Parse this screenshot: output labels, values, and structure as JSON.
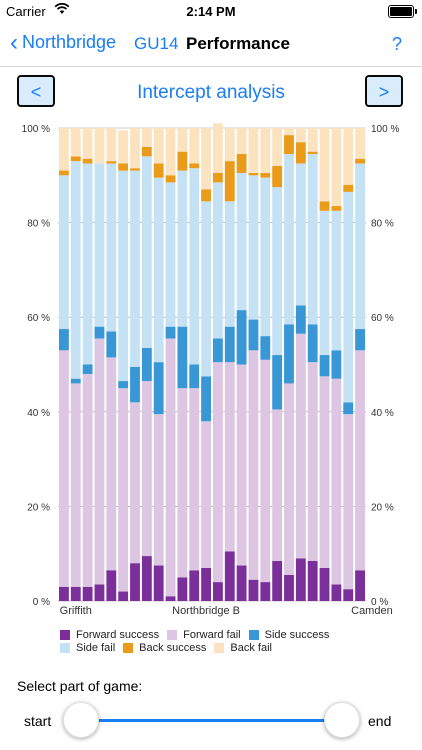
{
  "status_bar": {
    "carrier": "Carrier",
    "time": "2:14 PM"
  },
  "nav": {
    "back_label": "Northbridge",
    "team": "GU14",
    "title": "Performance",
    "help": "?"
  },
  "controls": {
    "prev_label": "<",
    "next_label": ">",
    "analysis_title": "Intercept analysis"
  },
  "chart_data": {
    "type": "bar",
    "stacked": true,
    "ylim": [
      0,
      100
    ],
    "yticks": [
      "0 %",
      "20 %",
      "40 %",
      "60 %",
      "80 %",
      "100 %"
    ],
    "x_tick_labels": [
      {
        "index": 1,
        "label": "Griffith"
      },
      {
        "index": 12,
        "label": "Northbridge B"
      },
      {
        "index": 26,
        "label": "Camden"
      }
    ],
    "colors": {
      "forward_success": "#7b2f9a",
      "forward_fail": "#dcc6e1",
      "side_success": "#3a97d6",
      "side_fail": "#c5e2f4",
      "back_success": "#eb9b1a",
      "back_fail": "#fbe3c0"
    },
    "series": [
      {
        "key": "forward_success",
        "name": "Forward success",
        "values": [
          3,
          3,
          3,
          3.5,
          6.5,
          2,
          8,
          9.5,
          7.5,
          1,
          5,
          6.5,
          7,
          4,
          10.5,
          7.5,
          4.5,
          4,
          8.5,
          5.5,
          9,
          8.5,
          7,
          3.5,
          2.5,
          6.5
        ]
      },
      {
        "key": "forward_fail",
        "name": "Forward fail",
        "values": [
          50,
          43,
          45,
          52,
          45,
          43,
          34,
          37,
          32,
          54.5,
          40,
          38.5,
          31,
          46.5,
          40,
          42.5,
          48.5,
          47,
          32,
          40.5,
          47.5,
          42,
          40.5,
          43.5,
          37,
          46.5
        ]
      },
      {
        "key": "side_success",
        "name": "Side success",
        "values": [
          4.5,
          1,
          2,
          2.5,
          5.5,
          1.5,
          7.5,
          7,
          11,
          2.5,
          13,
          5,
          9.5,
          5,
          7.5,
          11.5,
          6.5,
          5,
          11.5,
          12.5,
          6,
          8,
          4.5,
          6,
          2.5,
          4.5
        ]
      },
      {
        "key": "side_fail",
        "name": "Side fail",
        "values": [
          32.5,
          46,
          42.5,
          34.5,
          35.5,
          44.5,
          41.5,
          40.5,
          39,
          30.5,
          33,
          41.5,
          37,
          33,
          26.5,
          29,
          30.5,
          33.5,
          35.5,
          36,
          30,
          36,
          30.5,
          29.5,
          44.5,
          35
        ]
      },
      {
        "key": "back_success",
        "name": "Back success",
        "values": [
          1,
          1,
          1,
          0,
          0.5,
          1.5,
          0.5,
          2,
          3,
          1.5,
          4,
          1,
          2.5,
          2,
          8.5,
          4,
          0.5,
          1,
          4.5,
          4,
          4.5,
          0.5,
          2,
          1,
          1.5,
          1
        ]
      },
      {
        "key": "back_fail",
        "name": "Back fail",
        "values": [
          9,
          6,
          6.5,
          7.5,
          7,
          7,
          8.5,
          4,
          7.5,
          10,
          5,
          7.5,
          13,
          10.5,
          7,
          5.5,
          9.5,
          9.5,
          8,
          1.5,
          3,
          5,
          15.5,
          16.5,
          12,
          6.5
        ]
      }
    ]
  },
  "slider": {
    "label": "Select part of game:",
    "start_label": "start",
    "end_label": "end"
  }
}
